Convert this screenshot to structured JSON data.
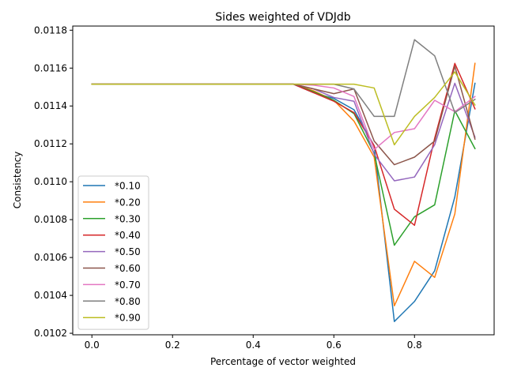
{
  "chart_data": {
    "type": "line",
    "title": "Sides weighted of VDJdb",
    "xlabel": "Percentage of vector weighted",
    "ylabel": "Consistency",
    "xlim": [
      -0.0475,
      0.9975
    ],
    "ylim": [
      0.010192,
      0.011822
    ],
    "x_ticks": [
      0.0,
      0.2,
      0.4,
      0.6,
      0.8
    ],
    "x_tick_labels": [
      "0.0",
      "0.2",
      "0.4",
      "0.6",
      "0.8"
    ],
    "y_ticks": [
      0.0102,
      0.0104,
      0.0106,
      0.0108,
      0.011,
      0.0112,
      0.0114,
      0.0116,
      0.0118
    ],
    "y_tick_labels": [
      "0.0102",
      "0.0104",
      "0.0106",
      "0.0108",
      "0.0110",
      "0.0112",
      "0.0114",
      "0.0116",
      "0.0118"
    ],
    "grid": false,
    "legend_position": "lower-left",
    "x": [
      0.0,
      0.05,
      0.1,
      0.15,
      0.2,
      0.25,
      0.3,
      0.35,
      0.4,
      0.45,
      0.5,
      0.55,
      0.6,
      0.65,
      0.7,
      0.75,
      0.8,
      0.85,
      0.9,
      0.95
    ],
    "series": [
      {
        "name": "*0.10",
        "color": "#1f77b4",
        "values": [
          0.011515,
          0.011515,
          0.011515,
          0.011515,
          0.011515,
          0.011515,
          0.011515,
          0.011515,
          0.011515,
          0.011515,
          0.011515,
          0.01147,
          0.01144,
          0.01138,
          0.01119,
          0.010262,
          0.010368,
          0.01053,
          0.01092,
          0.01152
        ]
      },
      {
        "name": "*0.20",
        "color": "#ff7f0e",
        "values": [
          0.011515,
          0.011515,
          0.011515,
          0.011515,
          0.011515,
          0.011515,
          0.011515,
          0.011515,
          0.011515,
          0.011515,
          0.011515,
          0.01148,
          0.01143,
          0.01132,
          0.01113,
          0.010345,
          0.01058,
          0.010495,
          0.01083,
          0.011625
        ]
      },
      {
        "name": "*0.30",
        "color": "#2ca02c",
        "values": [
          0.011515,
          0.011515,
          0.011515,
          0.011515,
          0.011515,
          0.011515,
          0.011515,
          0.011515,
          0.011515,
          0.011515,
          0.011515,
          0.011475,
          0.01143,
          0.01136,
          0.01115,
          0.010665,
          0.010815,
          0.010878,
          0.011375,
          0.011175
        ]
      },
      {
        "name": "*0.40",
        "color": "#d62728",
        "values": [
          0.011515,
          0.011515,
          0.011515,
          0.011515,
          0.011515,
          0.011515,
          0.011515,
          0.011515,
          0.011515,
          0.011515,
          0.011515,
          0.01147,
          0.011425,
          0.011365,
          0.01119,
          0.010855,
          0.01077,
          0.01123,
          0.011625,
          0.011385
        ]
      },
      {
        "name": "*0.50",
        "color": "#9467bd",
        "values": [
          0.011515,
          0.011515,
          0.011515,
          0.011515,
          0.011515,
          0.011515,
          0.011515,
          0.011515,
          0.011515,
          0.011515,
          0.011515,
          0.01149,
          0.011445,
          0.011425,
          0.011145,
          0.011005,
          0.011025,
          0.011195,
          0.01152,
          0.011235
        ]
      },
      {
        "name": "*0.60",
        "color": "#8c564b",
        "values": [
          0.011515,
          0.011515,
          0.011515,
          0.011515,
          0.011515,
          0.011515,
          0.011515,
          0.011515,
          0.011515,
          0.011515,
          0.011515,
          0.01149,
          0.011465,
          0.01149,
          0.011215,
          0.01109,
          0.01113,
          0.011215,
          0.01161,
          0.011225
        ]
      },
      {
        "name": "*0.70",
        "color": "#e377c2",
        "values": [
          0.011515,
          0.011515,
          0.011515,
          0.011515,
          0.011515,
          0.011515,
          0.011515,
          0.011515,
          0.011515,
          0.011515,
          0.011515,
          0.01151,
          0.011495,
          0.01145,
          0.01117,
          0.01126,
          0.01128,
          0.01143,
          0.01137,
          0.01145
        ]
      },
      {
        "name": "*0.80",
        "color": "#7f7f7f",
        "values": [
          0.011515,
          0.011515,
          0.011515,
          0.011515,
          0.011515,
          0.011515,
          0.011515,
          0.011515,
          0.011515,
          0.011515,
          0.011515,
          0.011515,
          0.011515,
          0.01149,
          0.011345,
          0.011345,
          0.01175,
          0.011665,
          0.011365,
          0.011435
        ]
      },
      {
        "name": "*0.90",
        "color": "#bcbd22",
        "values": [
          0.011515,
          0.011515,
          0.011515,
          0.011515,
          0.011515,
          0.011515,
          0.011515,
          0.011515,
          0.011515,
          0.011515,
          0.011515,
          0.011515,
          0.011515,
          0.011515,
          0.011495,
          0.011195,
          0.011345,
          0.011445,
          0.01158,
          0.011405
        ]
      }
    ]
  }
}
